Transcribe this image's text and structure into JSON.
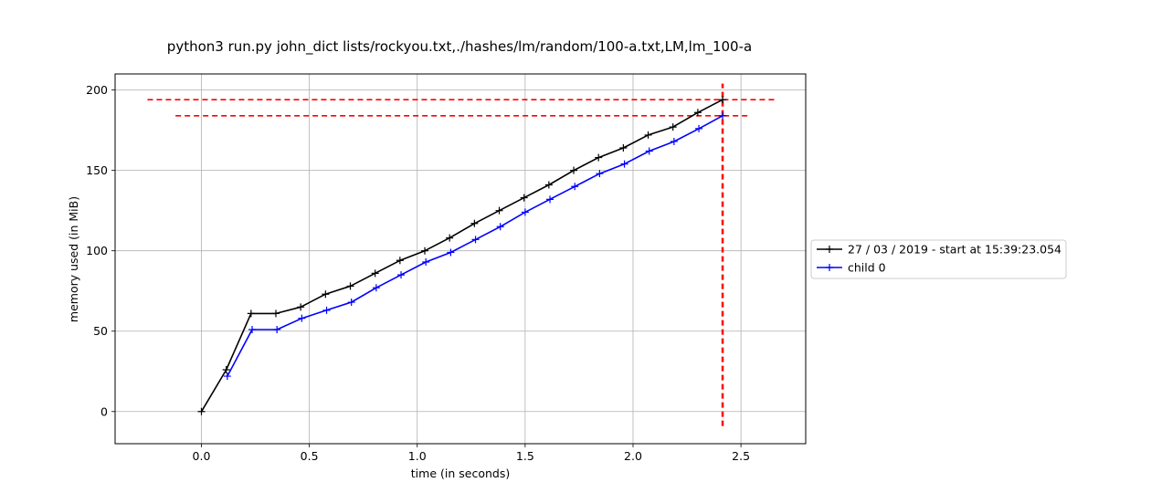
{
  "chart_data": {
    "type": "line",
    "title": "python3 run.py john_dict lists/rockyou.txt,./hashes/lm/random/100-a.txt,LM,lm_100-a",
    "xlabel": "time (in seconds)",
    "ylabel": "memory used (in MiB)",
    "xlim": [
      -0.4,
      2.8
    ],
    "ylim": [
      -20,
      210
    ],
    "xticks": [
      0.0,
      0.5,
      1.0,
      1.5,
      2.0,
      2.5
    ],
    "xtick_labels": [
      "0.0",
      "0.5",
      "1.0",
      "1.5",
      "2.0",
      "2.5"
    ],
    "yticks": [
      0,
      50,
      100,
      150,
      200
    ],
    "ytick_labels": [
      "0",
      "50",
      "100",
      "150",
      "200"
    ],
    "grid": true,
    "legend_position": "right, outside plot area",
    "series": [
      {
        "name": "27 / 03 / 2019 - start at 15:39:23.054",
        "color": "#000000",
        "marker": "+",
        "x": [
          0.0,
          0.115,
          0.23,
          0.345,
          0.46,
          0.575,
          0.69,
          0.805,
          0.92,
          1.035,
          1.15,
          1.265,
          1.38,
          1.495,
          1.61,
          1.725,
          1.84,
          1.955,
          2.07,
          2.185,
          2.3,
          2.415
        ],
        "y": [
          0,
          26,
          61,
          61,
          65,
          73,
          78,
          86,
          94,
          100,
          108,
          117,
          125,
          133,
          141,
          150,
          158,
          164,
          172,
          177,
          186,
          194
        ]
      },
      {
        "name": "child 0",
        "color": "#0000ff",
        "marker": "+",
        "x": [
          0.12,
          0.235,
          0.35,
          0.465,
          0.58,
          0.695,
          0.81,
          0.925,
          1.04,
          1.155,
          1.27,
          1.385,
          1.5,
          1.615,
          1.73,
          1.845,
          1.96,
          2.075,
          2.19,
          2.305,
          2.415
        ],
        "y": [
          22,
          51,
          51,
          58,
          63,
          68,
          77,
          85,
          93,
          99,
          107,
          115,
          124,
          132,
          140,
          148,
          154,
          162,
          168,
          176,
          184
        ]
      }
    ],
    "reference_lines": [
      {
        "orientation": "horizontal",
        "y": 194,
        "x_from": -0.25,
        "x_to": 2.67,
        "color": "#ff0000",
        "style": "dashed"
      },
      {
        "orientation": "horizontal",
        "y": 184,
        "x_from": -0.12,
        "x_to": 2.53,
        "color": "#ff0000",
        "style": "dashed"
      },
      {
        "orientation": "vertical",
        "x": 2.415,
        "y_from": -9,
        "y_to": 204,
        "color": "#ff0000",
        "style": "dashed"
      }
    ]
  }
}
